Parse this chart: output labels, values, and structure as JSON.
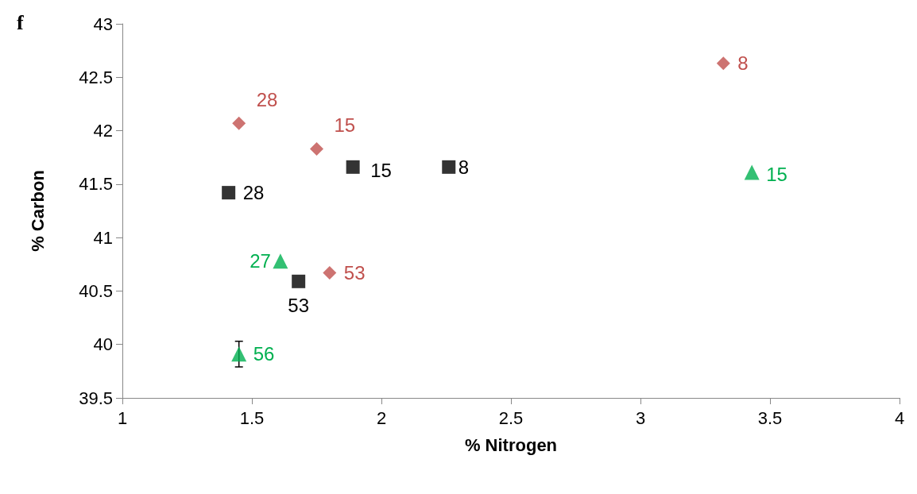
{
  "chart_data": {
    "type": "scatter",
    "title": "f",
    "xlabel": "% Nitrogen",
    "ylabel": "% Carbon",
    "xlim": [
      1,
      4
    ],
    "xticks": [
      1,
      1.5,
      2,
      2.5,
      3,
      3.5,
      4
    ],
    "ylim": [
      39.5,
      43
    ],
    "yticks": [
      39.5,
      40,
      40.5,
      41,
      41.5,
      42,
      42.5,
      43
    ],
    "grid": false,
    "series": [
      {
        "color": "#c0504d",
        "marker": "diamond",
        "x": [
          1.45,
          1.75,
          3.32,
          1.8
        ],
        "values": [
          42.07,
          41.83,
          42.63,
          40.67
        ]
      },
      {
        "color": "#000000",
        "marker": "square",
        "x": [
          1.41,
          1.89,
          2.26,
          1.68
        ],
        "values": [
          41.42,
          41.66,
          41.66,
          40.59
        ]
      },
      {
        "color": "#00b050",
        "marker": "triangle",
        "x": [
          3.43,
          1.61,
          1.45
        ],
        "values": [
          41.61,
          40.78,
          39.91
        ],
        "errors": [
          null,
          null,
          0.12
        ]
      }
    ],
    "annotations": [
      {
        "text": "28",
        "x": 1.45,
        "y": 42.07
      },
      {
        "text": "15",
        "x": 1.75,
        "y": 41.83
      },
      {
        "text": "8",
        "x": 3.32,
        "y": 42.63
      },
      {
        "text": "53",
        "x": 1.8,
        "y": 40.67
      },
      {
        "text": "28",
        "x": 1.41,
        "y": 41.42
      },
      {
        "text": "15",
        "x": 1.89,
        "y": 41.66
      },
      {
        "text": "8",
        "x": 2.26,
        "y": 41.66
      },
      {
        "text": "53",
        "x": 1.68,
        "y": 40.59
      },
      {
        "text": "15",
        "x": 3.43,
        "y": 41.61
      },
      {
        "text": "27",
        "x": 1.61,
        "y": 40.78
      },
      {
        "text": "56",
        "x": 1.45,
        "y": 39.91
      }
    ]
  }
}
